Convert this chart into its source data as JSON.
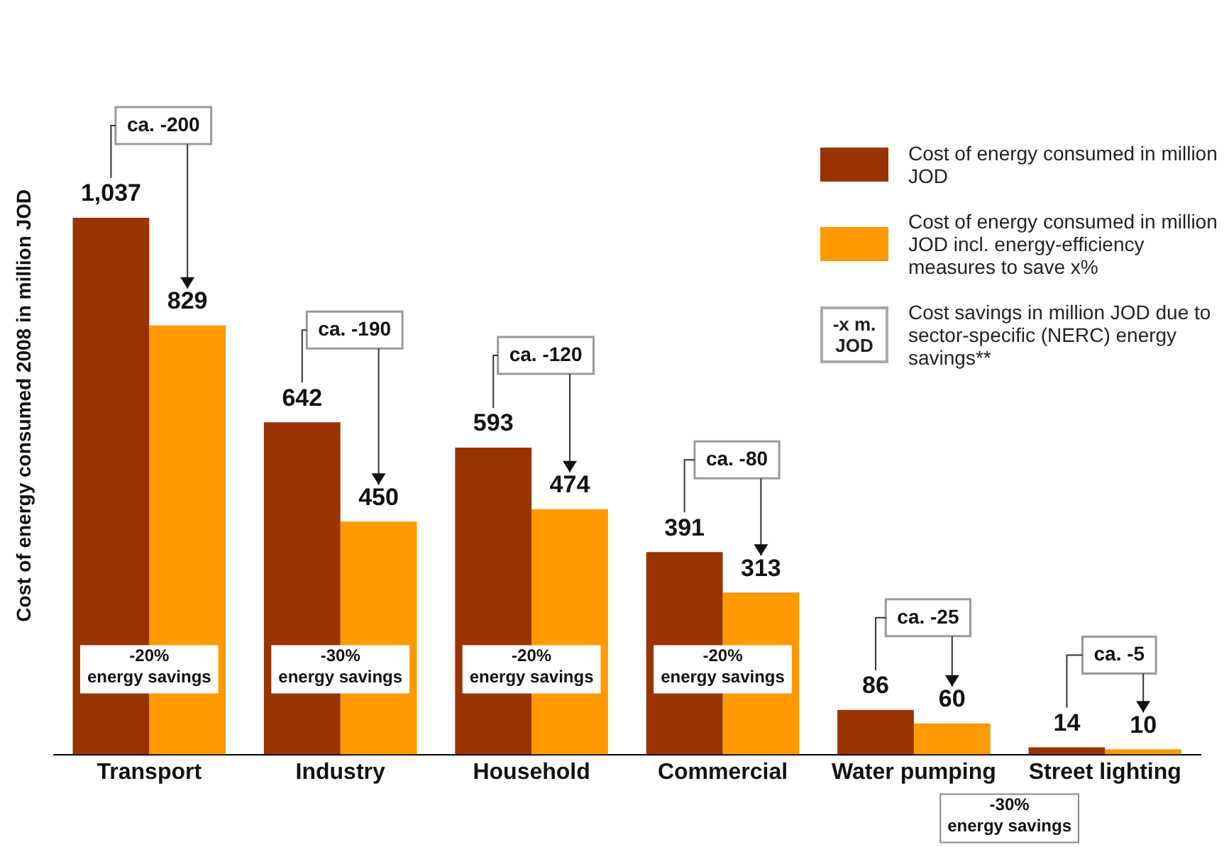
{
  "chart_data": {
    "type": "bar",
    "ylabel": "Cost of energy consumed 2008 in million JOD",
    "categories": [
      "Transport",
      "Industry",
      "Household",
      "Commercial",
      "Water pumping",
      "Street lighting"
    ],
    "series": [
      {
        "name": "Cost of energy consumed in million JOD",
        "color": "#993300",
        "values": [
          1037,
          642,
          593,
          391,
          86,
          14
        ],
        "value_labels": [
          "1,037",
          "642",
          "593",
          "391",
          "86",
          "14"
        ]
      },
      {
        "name": "Cost of energy consumed in million JOD incl. energy-efficiency measures to save x%",
        "color": "#ff9900",
        "values": [
          829,
          450,
          474,
          313,
          60,
          10
        ],
        "value_labels": [
          "829",
          "450",
          "474",
          "313",
          "60",
          "10"
        ]
      }
    ],
    "grid": false,
    "legend": "right",
    "tick_labels": "x",
    "annotations": [
      "ca. -200",
      "ca. -190",
      "ca. -120",
      "ca. -80",
      "ca. -25",
      "ca. -5",
      "-20%\nenergy savings",
      "-30%\nenergy savings",
      "-20%\nenergy savings",
      "-20%\nenergy savings",
      "-30%\nenergy savings",
      "-x m.\nJOD",
      "Cost savings in million JOD due to sector-specific (NERC) energy savings**"
    ]
  }
}
